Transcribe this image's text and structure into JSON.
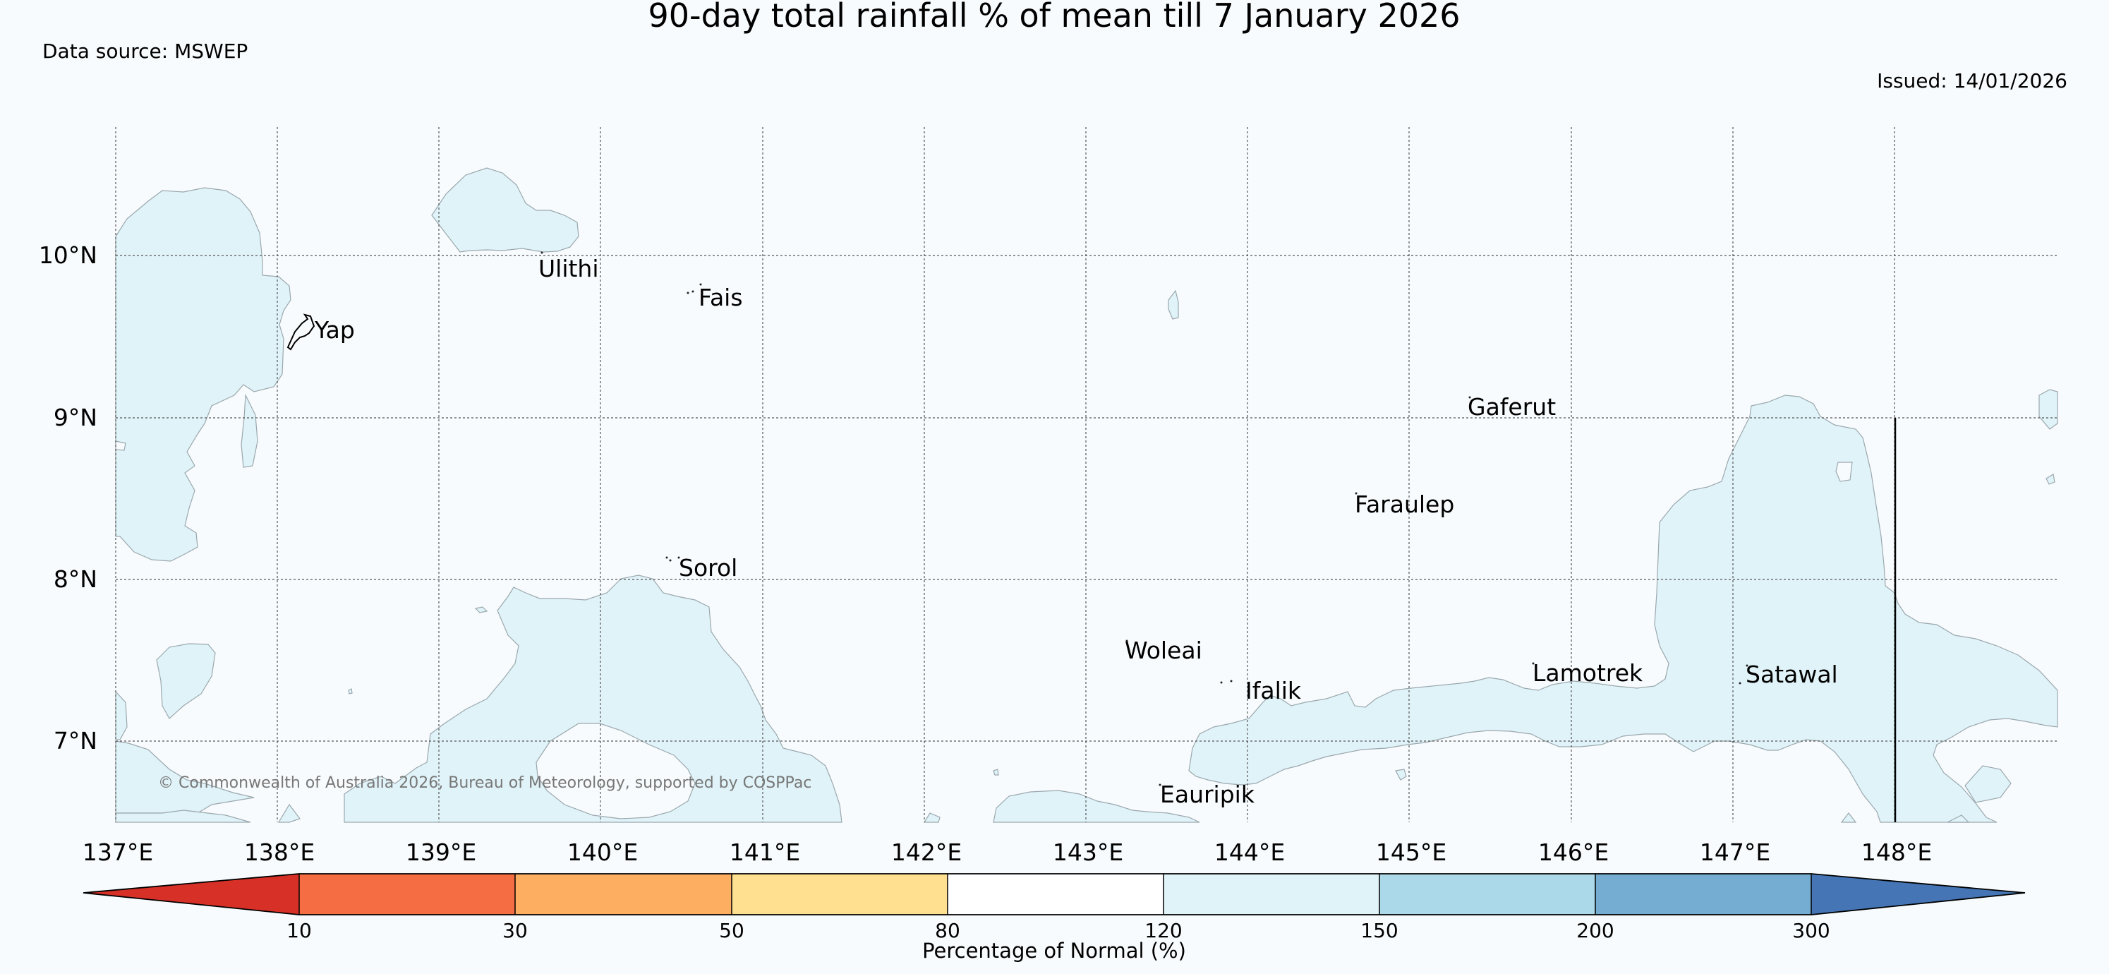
{
  "title": "90-day total rainfall % of mean till 7 January 2026",
  "data_source": "Data source: MSWEP",
  "issued": "Issued: 14/01/2026",
  "copyright": "© Commonwealth of Australia 2026, Bureau of Meteorology, supported by COSPPac",
  "lon_labels": [
    "137°E",
    "138°E",
    "139°E",
    "140°E",
    "141°E",
    "142°E",
    "143°E",
    "144°E",
    "145°E",
    "146°E",
    "147°E",
    "148°E"
  ],
  "lat_labels": [
    "10°N",
    "9°N",
    "8°N",
    "7°N"
  ],
  "places": [
    "Ulithi",
    "Fais",
    "Yap",
    "Gaferut",
    "Faraulep",
    "Sorol",
    "Woleai",
    "Ifalik",
    "Lamotrek",
    "Satawal",
    "Eauripik"
  ],
  "colorbar": {
    "label": "Percentage of Normal (%)",
    "ticks": [
      "10",
      "30",
      "50",
      "80",
      "120",
      "150",
      "200",
      "300"
    ],
    "bins": [
      {
        "range": "<10",
        "color": "#d73027"
      },
      {
        "range": "10-30",
        "color": "#f46d43"
      },
      {
        "range": "30-50",
        "color": "#fdae61"
      },
      {
        "range": "50-80",
        "color": "#fee090"
      },
      {
        "range": "80-120",
        "color": "#ffffff"
      },
      {
        "range": "120-150",
        "color": "#e0f3f8"
      },
      {
        "range": "150-200",
        "color": "#abd9e9"
      },
      {
        "range": "200-300",
        "color": "#74add1"
      },
      {
        "range": "300-",
        "color": "#4575b4"
      }
    ]
  },
  "colors": {
    "background": "#f8fbfd",
    "shade_120_150": "#e0f3f8",
    "shade_edge": "#9aa8ae",
    "grid": "#555555"
  }
}
